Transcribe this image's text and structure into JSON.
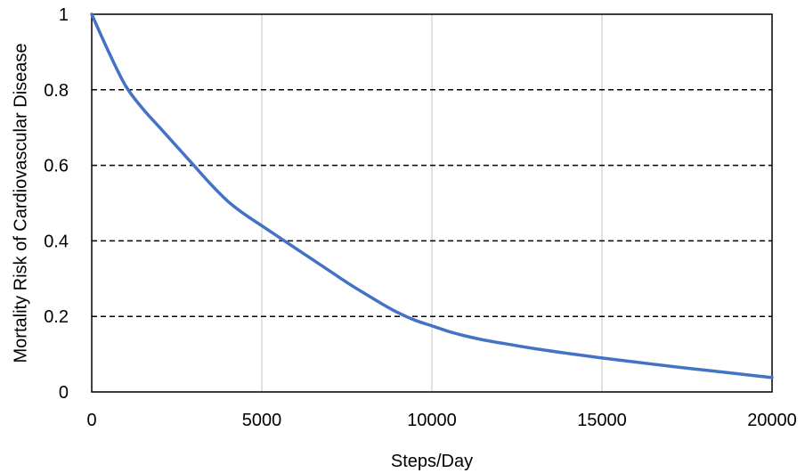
{
  "chart_data": {
    "type": "line",
    "title": "",
    "xlabel": "Steps/Day",
    "ylabel": "Mortality Risk of Cardiovascular Disease",
    "xlim": [
      0,
      20000
    ],
    "ylim": [
      0,
      1
    ],
    "xticks": [
      0,
      5000,
      10000,
      15000,
      20000
    ],
    "yticks": [
      0,
      0.2,
      0.4,
      0.6,
      0.8,
      1
    ],
    "xtick_labels": [
      "0",
      "5000",
      "10000",
      "15000",
      "20000"
    ],
    "ytick_labels": [
      "0",
      "0.2",
      "0.4",
      "0.6",
      "0.8",
      "1"
    ],
    "grid": {
      "vertical": "solid light gray",
      "horizontal": "dashed black"
    },
    "legend": "none",
    "series": [
      {
        "color": "#4472C4",
        "x": [
          0,
          500,
          1000,
          1500,
          2000,
          2500,
          3000,
          3500,
          4000,
          4500,
          5000,
          5500,
          6000,
          6500,
          7000,
          7500,
          8000,
          8500,
          9000,
          9500,
          10000,
          10500,
          11000,
          11500,
          12000,
          13000,
          14000,
          15000,
          16000,
          17000,
          18000,
          19000,
          20000
        ],
        "y": [
          1.0,
          0.9,
          0.81,
          0.75,
          0.7,
          0.65,
          0.6,
          0.55,
          0.505,
          0.47,
          0.44,
          0.41,
          0.38,
          0.35,
          0.32,
          0.29,
          0.262,
          0.235,
          0.21,
          0.19,
          0.175,
          0.16,
          0.148,
          0.138,
          0.13,
          0.115,
          0.102,
          0.09,
          0.079,
          0.068,
          0.058,
          0.048,
          0.038
        ]
      }
    ]
  }
}
